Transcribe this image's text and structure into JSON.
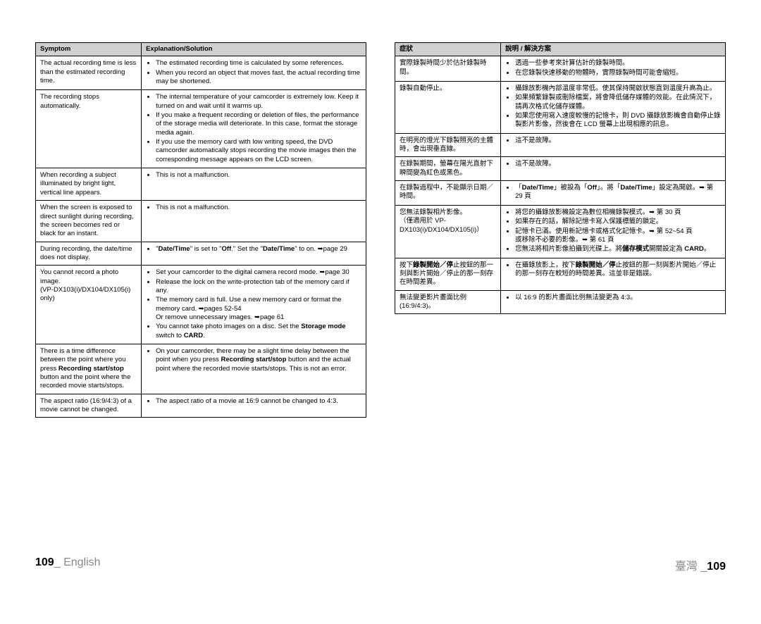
{
  "left": {
    "headers": [
      "Symptom",
      "Explanation/Solution"
    ],
    "rows": [
      {
        "symptom": "The actual recording time is less than the estimated recording time.",
        "solutions": [
          "The estimated recording time is calculated by some references.",
          "When you record an object that moves fast, the actual recording time may be shortened."
        ]
      },
      {
        "symptom": "The recording stops automatically.",
        "solutions": [
          "The internal temperature of your camcorder is extremely low. Keep it turned on and wait until it warms up.",
          "If you make a frequent recording or deletion of files, the performance of the storage media will deteriorate. In this case, format the storage media again.",
          "If you use the memory card with low writing speed, the DVD camcorder automatically stops recording the movie images then the corresponding message appears on the LCD screen."
        ]
      },
      {
        "symptom": "When recording a subject illuminated by bright light, vertical line appears.",
        "solutions": [
          "This is not a malfunction."
        ]
      },
      {
        "symptom": "When the screen is exposed to direct sunlight during recording, the screen becomes red or black for an instant.",
        "solutions": [
          "This is not a malfunction."
        ]
      },
      {
        "symptom": "During recording, the date/time does not display.",
        "solutions_html": "<ul class=\"bul\"><li>\"<strong>Date/Time</strong>\" is set to \"<strong>Off</strong>.\" Set the \"<strong>Date/Time</strong>\" to on. ➥page 29</li></ul>"
      },
      {
        "symptom": "You cannot record a photo image.\n(VP-DX103(i)/DX104/DX105(i) only)",
        "solutions_html": "<ul class=\"bul\"><li>Set your camcorder to the digital camera record mode. ➥page 30</li><li>Release the lock on the write-protection tab of the memory card if any.</li><li>The memory card is full. Use a new memory card or format the memory card. ➥pages 52-54<br>Or remove unnecessary images. ➥page 61</li><li>You cannot take photo images on a disc. Set the <strong>Storage mode</strong> switch to <strong>CARD</strong>.</li></ul>"
      },
      {
        "symptom_html": "There is a time difference between the point where you press <strong>Recording start/stop</strong> button and the point where the recorded movie starts/stops.",
        "solutions_html": "<ul class=\"bul\"><li>On your camcorder, there may be a slight time delay between the point when you press <strong>Recording start/stop</strong> button and the actual point where the recorded movie starts/stops. This is not an error.</li></ul>"
      },
      {
        "symptom": "The aspect ratio (16:9/4:3) of a movie cannot be changed.",
        "solutions": [
          "The aspect ratio of a movie at 16:9 cannot be changed to 4:3."
        ]
      }
    ]
  },
  "right": {
    "headers": [
      "症狀",
      "說明 / 解決方案"
    ],
    "rows": [
      {
        "symptom": "實際錄製時間少於估計錄製時間。",
        "solutions": [
          "透過一些參考來計算估計的錄製時間。",
          "在您錄製快速移動的物體時，實際錄製時間可能會縮短。"
        ]
      },
      {
        "symptom": "錄製自動停止。",
        "solutions": [
          "攝錄放影機內部溫度非常低。使其保持開啟狀態直到溫度升高為止。",
          "如果頻繁錄製或刪除檔案，將會降低儲存媒體的效能。在此情況下，請再次格式化儲存媒體。",
          "如果您使用寫入速度較慢的記憶卡，則 DVD 攝錄放影機會自動停止錄製影片影像，然後會在 LCD 螢幕上出現相應的訊息。"
        ]
      },
      {
        "symptom": "在明亮的燈光下錄製照亮的主體時，會出現垂直線。",
        "solutions": [
          "這不是故障。"
        ]
      },
      {
        "symptom": "在錄製期間，螢幕在陽光直射下瞬間變為紅色或黑色。",
        "solutions": [
          "這不是故障。"
        ]
      },
      {
        "symptom": "在錄製過程中，不能顯示日期／時間。",
        "solutions_html": "<ul class=\"bul\"><li>「<strong>Date/Time</strong>」被設為「<strong>Off</strong>」。將「<strong>Date/Time</strong>」設定為開啟。➥ 第 29 頁</li></ul>"
      },
      {
        "symptom": "您無法錄製相片影像。\n（僅適用於 VP-DX103(i)/DX104/DX105(i)）",
        "solutions_html": "<ul class=\"bul\"><li>將您的攝錄放影機設定為數位相機錄製模式。➥ 第 30 頁</li><li>如果存在的話，解除記憶卡寫入保護標籤的鎖定。</li><li>記憶卡已滿。使用新記憶卡或格式化記憶卡。➥ 第 52~54 頁<br>或移除不必要的影像。➥ 第 61 頁</li><li>您無法將相片影像拍攝到光碟上。將<strong>儲存模式</strong>開關設定為 <strong>CARD</strong>。</li></ul>"
      },
      {
        "symptom_html": "按下<strong>錄製開始／停</strong>止按鈕的那一刻與影片開始／停止的那一刻存在時間差異。",
        "solutions_html": "<ul class=\"bul\"><li>在攝錄放影上，按下<strong>錄製開始／停</strong>止按鈕的那一刻與影片開始／停止的那一刻存在較短的時間差異。這並非是錯誤。</li></ul>"
      },
      {
        "symptom": "無法變更影片畫面比例 (16:9/4:3)。",
        "solutions": [
          "以 16:9 的影片畫面比例無法變更為 4:3。"
        ]
      }
    ]
  },
  "footer": {
    "left_num": "109",
    "left_sep": "_",
    "left_lang": "English",
    "right_lang": "臺灣",
    "right_sep": "_",
    "right_num": "109"
  }
}
